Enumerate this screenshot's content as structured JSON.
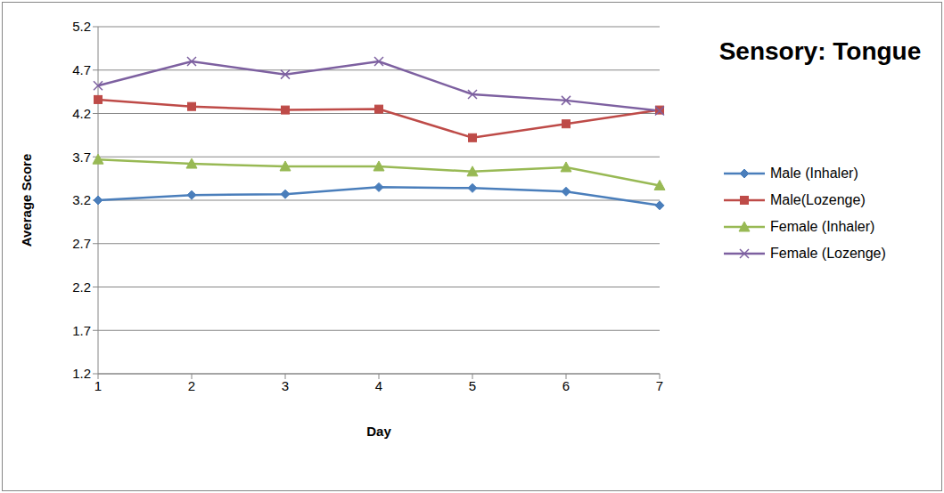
{
  "chart_data": {
    "type": "line",
    "title": "Sensory: Tongue",
    "x_label": "Day",
    "y_label": "Average Score",
    "categories": [
      "1",
      "2",
      "3",
      "4",
      "5",
      "6",
      "7"
    ],
    "series": [
      {
        "name": "Male (Inhaler)",
        "color": "#4a7ebb",
        "marker": "diamond",
        "values": [
          3.2,
          3.26,
          3.27,
          3.35,
          3.34,
          3.3,
          3.14
        ]
      },
      {
        "name": "Male(Lozenge)",
        "color": "#be4b48",
        "marker": "square",
        "values": [
          4.36,
          4.28,
          4.24,
          4.25,
          3.92,
          4.08,
          4.24
        ]
      },
      {
        "name": "Female (Inhaler)",
        "color": "#98b954",
        "marker": "triangle",
        "values": [
          3.67,
          3.62,
          3.59,
          3.59,
          3.53,
          3.58,
          3.37
        ]
      },
      {
        "name": "Female (Lozenge)",
        "color": "#7d60a0",
        "marker": "x",
        "values": [
          4.52,
          4.8,
          4.65,
          4.8,
          4.42,
          4.35,
          4.23
        ]
      }
    ],
    "ylim": [
      1.2,
      5.2
    ],
    "yticks": [
      1.2,
      1.7,
      2.2,
      2.7,
      3.2,
      3.7,
      4.2,
      4.7,
      5.2
    ],
    "grid": true,
    "legend": "right"
  }
}
